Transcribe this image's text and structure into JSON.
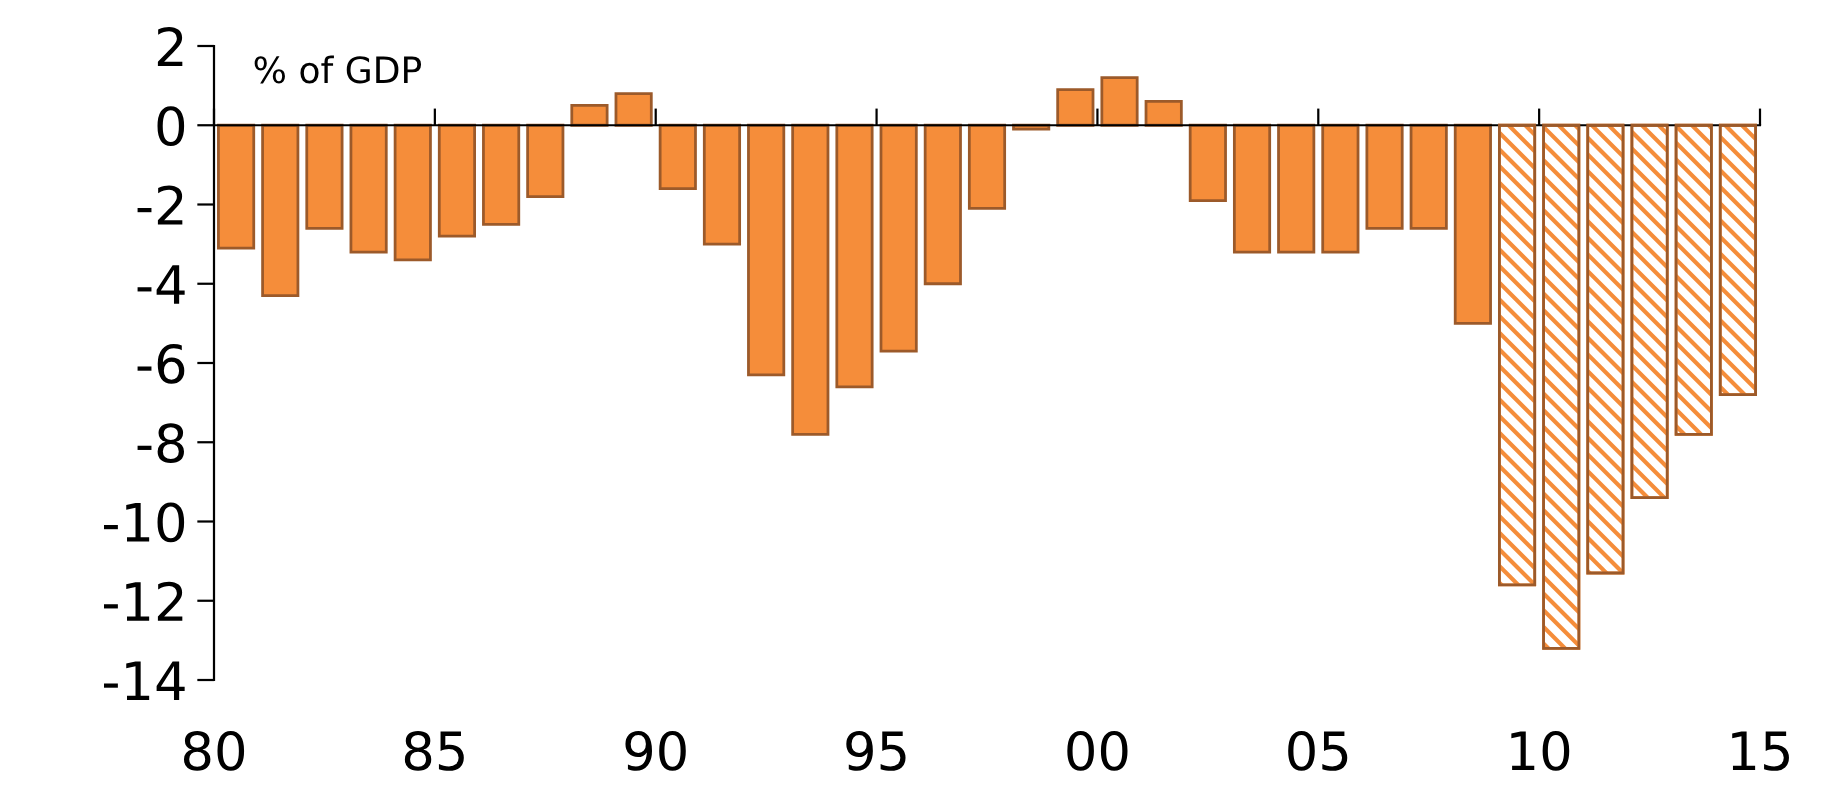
{
  "chart_data": {
    "type": "bar",
    "annotations": [
      "% of GDP"
    ],
    "x": [
      1980,
      1981,
      1982,
      1983,
      1984,
      1985,
      1986,
      1987,
      1988,
      1989,
      1990,
      1991,
      1992,
      1993,
      1994,
      1995,
      1996,
      1997,
      1998,
      1999,
      2000,
      2001,
      2002,
      2003,
      2004,
      2005,
      2006,
      2007,
      2008,
      2009,
      2010,
      2011,
      2012,
      2013,
      2014
    ],
    "series": [
      {
        "color": "#f58d3a",
        "values": [
          -3.1,
          -4.3,
          -2.6,
          -3.2,
          -3.4,
          -2.8,
          -2.5,
          -1.8,
          0.5,
          0.8,
          -1.6,
          -3.0,
          -6.3,
          -7.8,
          -6.6,
          -5.7,
          -4.0,
          -2.1,
          -0.1,
          0.9,
          1.2,
          0.6,
          -1.9,
          -3.2,
          -3.2,
          -3.2,
          -2.6,
          -2.6,
          -5.0,
          null,
          null,
          null,
          null,
          null,
          null
        ]
      },
      {
        "color": "#f58d3a",
        "values": [
          null,
          null,
          null,
          null,
          null,
          null,
          null,
          null,
          null,
          null,
          null,
          null,
          null,
          null,
          null,
          null,
          null,
          null,
          null,
          null,
          null,
          null,
          null,
          null,
          null,
          null,
          null,
          null,
          null,
          -11.6,
          -13.2,
          -11.3,
          -9.4,
          -7.8,
          -6.8
        ]
      }
    ],
    "xlim": [
      1980,
      2015
    ],
    "xticks": [
      {
        "value": 1980,
        "label": "80"
      },
      {
        "value": 1985,
        "label": "85"
      },
      {
        "value": 1990,
        "label": "90"
      },
      {
        "value": 1995,
        "label": "95"
      },
      {
        "value": 2000,
        "label": "00"
      },
      {
        "value": 2005,
        "label": "05"
      },
      {
        "value": 2010,
        "label": "10"
      },
      {
        "value": 2015,
        "label": "15"
      }
    ],
    "ylim": [
      -14,
      2
    ],
    "yticks": [
      2,
      0,
      -2,
      -4,
      -6,
      -8,
      -10,
      -12,
      -14
    ],
    "legend": false
  }
}
